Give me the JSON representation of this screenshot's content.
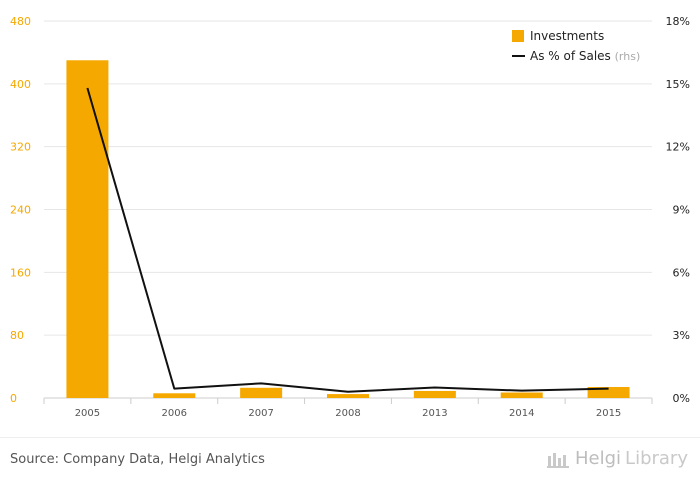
{
  "chart_data": {
    "type": "bar",
    "categories": [
      "2005",
      "2006",
      "2007",
      "2008",
      "2013",
      "2014",
      "2015"
    ],
    "series": [
      {
        "name": "Investments",
        "kind": "bar",
        "axis": "left",
        "color": "#f5a800",
        "values": [
          430,
          6,
          13,
          5,
          9,
          7,
          14
        ]
      },
      {
        "name": "As % of Sales",
        "kind": "line",
        "axis": "right",
        "color": "#111111",
        "values": [
          14.8,
          0.45,
          0.7,
          0.3,
          0.5,
          0.35,
          0.45
        ]
      }
    ],
    "left_axis": {
      "ylim": [
        0,
        480
      ],
      "ticks": [
        "0",
        "80",
        "160",
        "240",
        "320",
        "400",
        "480"
      ],
      "tick_color": "#f5a800"
    },
    "right_axis": {
      "ylim": [
        0,
        18
      ],
      "ticks": [
        "0%",
        "3%",
        "6%",
        "9%",
        "12%",
        "15%",
        "18%"
      ]
    },
    "legend": {
      "placement": "top-right",
      "rhs_note": "(rhs)"
    },
    "grid": true
  },
  "footer": {
    "source": "Source: Company Data, Helgi Analytics",
    "brand_helgi": "Helgi",
    "brand_library": "Library"
  }
}
